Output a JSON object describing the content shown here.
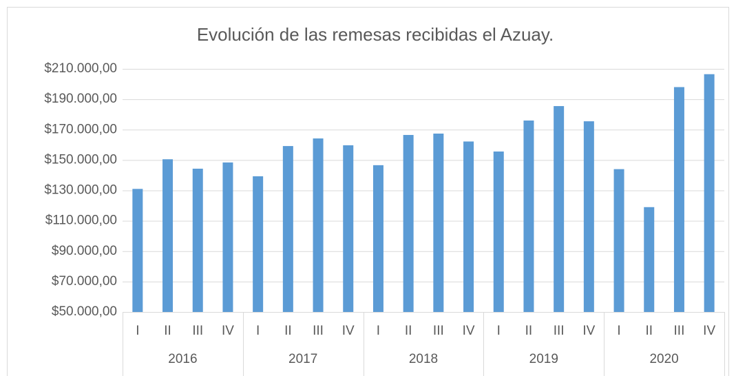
{
  "chart_data": {
    "type": "bar",
    "title": "Evolución de las remesas recibidas el Azuay.",
    "categories": [
      "I",
      "II",
      "III",
      "IV",
      "I",
      "II",
      "III",
      "IV",
      "I",
      "II",
      "III",
      "IV",
      "I",
      "II",
      "III",
      "IV",
      "I",
      "II",
      "III",
      "IV"
    ],
    "groups": [
      "2016",
      "2017",
      "2018",
      "2019",
      "2020"
    ],
    "values": [
      131000,
      150500,
      144300,
      148400,
      139300,
      159200,
      164200,
      159700,
      146600,
      166500,
      167400,
      162200,
      155600,
      176000,
      185500,
      175500,
      144000,
      119000,
      198000,
      206500
    ],
    "color": "#5b9bd5",
    "ylim": [
      50000,
      210000
    ],
    "yticks": [
      {
        "value": 50000,
        "label": "$50.000,00"
      },
      {
        "value": 70000,
        "label": "$70.000,00"
      },
      {
        "value": 90000,
        "label": "$90.000,00"
      },
      {
        "value": 110000,
        "label": "$110.000,00"
      },
      {
        "value": 130000,
        "label": "$130.000,00"
      },
      {
        "value": 150000,
        "label": "$150.000,00"
      },
      {
        "value": 170000,
        "label": "$170.000,00"
      },
      {
        "value": 190000,
        "label": "$190.000,00"
      },
      {
        "value": 210000,
        "label": "$210.000,00"
      }
    ],
    "grid": true
  }
}
